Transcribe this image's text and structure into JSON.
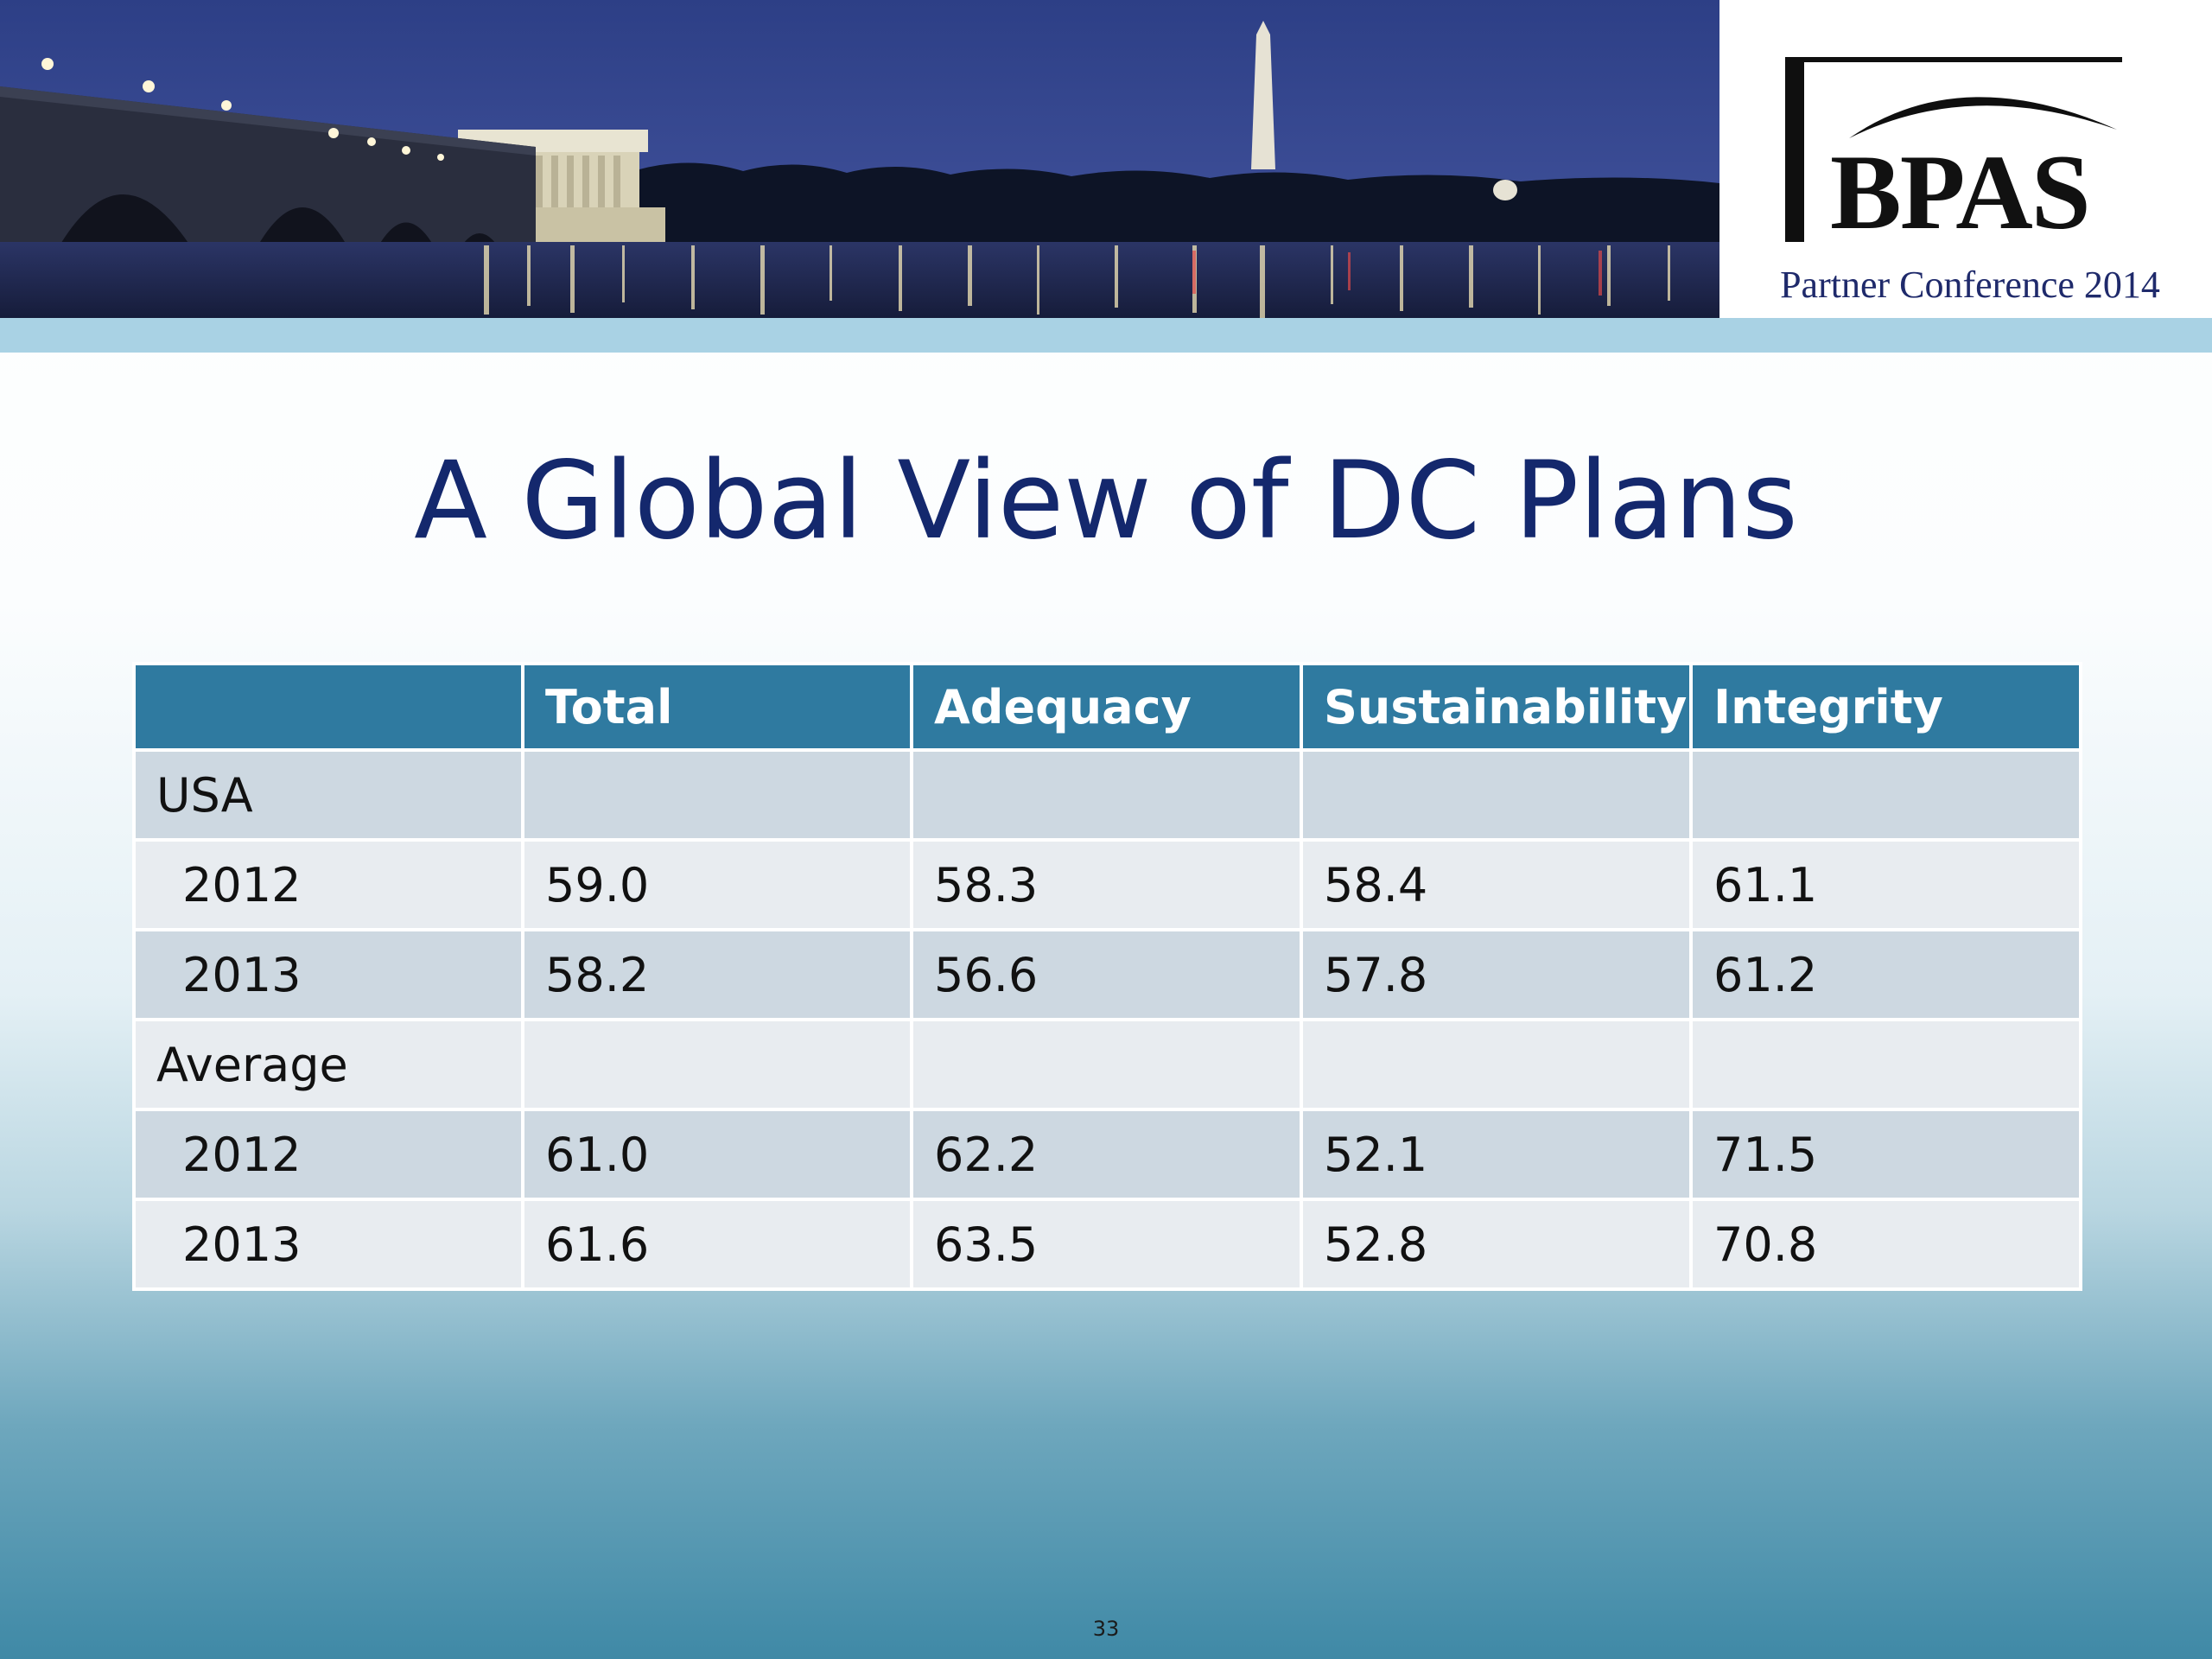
{
  "header": {
    "logo_text": "BPAS",
    "logo_subtitle": "Partner Conference 2014"
  },
  "slide": {
    "title": "A Global View of DC Plans",
    "page_number": "33"
  },
  "table": {
    "columns": [
      "",
      "Total",
      "Adequacy",
      "Sustainability",
      "Integrity"
    ],
    "rows": [
      {
        "label": "USA",
        "values": [
          "",
          "",
          "",
          ""
        ]
      },
      {
        "label": "2012",
        "values": [
          "59.0",
          "58.3",
          "58.4",
          "61.1"
        ]
      },
      {
        "label": "2013",
        "values": [
          "58.2",
          "56.6",
          "57.8",
          "61.2"
        ]
      },
      {
        "label": "Average",
        "values": [
          "",
          "",
          "",
          ""
        ]
      },
      {
        "label": "2012",
        "values": [
          "61.0",
          "62.2",
          "52.1",
          "71.5"
        ]
      },
      {
        "label": "2013",
        "values": [
          "61.6",
          "63.5",
          "52.8",
          "70.8"
        ]
      }
    ]
  }
}
